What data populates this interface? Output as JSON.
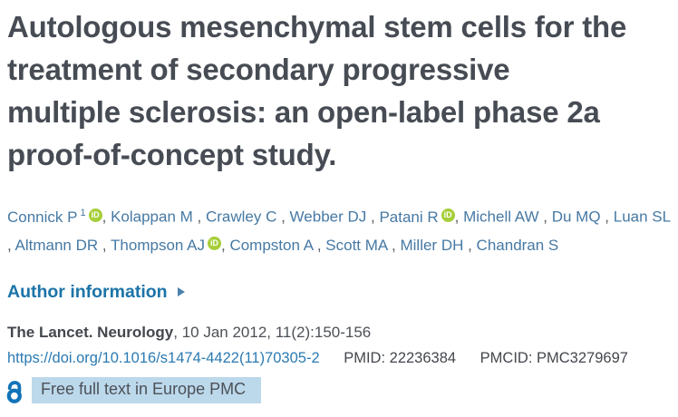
{
  "article": {
    "title_lines": [
      "Autologous mesenchymal stem cells for the",
      "treatment of secondary progressive",
      "multiple sclerosis: an open-label phase 2a",
      "proof-of-concept study."
    ],
    "authors": [
      {
        "name": "Connick P",
        "sup": "1",
        "orcid": true
      },
      {
        "name": "Kolappan M",
        "sup": "",
        "orcid": false
      },
      {
        "name": "Crawley C",
        "sup": "",
        "orcid": false
      },
      {
        "name": "Webber DJ",
        "sup": "",
        "orcid": false
      },
      {
        "name": "Patani R",
        "sup": "",
        "orcid": true
      },
      {
        "name": "Michell AW",
        "sup": "",
        "orcid": false
      },
      {
        "name": "Du MQ",
        "sup": "",
        "orcid": false
      },
      {
        "name": "Luan SL",
        "sup": "",
        "orcid": false
      },
      {
        "name": "Altmann DR",
        "sup": "",
        "orcid": false
      },
      {
        "name": "Thompson AJ",
        "sup": "",
        "orcid": true
      },
      {
        "name": "Compston A",
        "sup": "",
        "orcid": false
      },
      {
        "name": "Scott MA",
        "sup": "",
        "orcid": false
      },
      {
        "name": "Miller DH",
        "sup": "",
        "orcid": false
      },
      {
        "name": "Chandran S",
        "sup": "",
        "orcid": false
      }
    ],
    "orcid_icon_label": "iD"
  },
  "author_information": {
    "label": "Author information"
  },
  "citation": {
    "journal": "The Lancet. Neurology",
    "details": ", 10 Jan 2012, 11(2):150-156"
  },
  "identifiers": {
    "doi_link": "https://doi.org/10.1016/s1474-4422(11)70305-2",
    "pmid_label": "PMID:",
    "pmid_value": "22236384",
    "pmcid_label": "PMCID:",
    "pmcid_value": "PMC3279697"
  },
  "access": {
    "free_fulltext_label": "Free full text in Europe PMC"
  },
  "colors": {
    "title": "#474c54",
    "author_link": "#4679a4",
    "separator": "#555b61",
    "section_link": "#1c74a8",
    "expander": "#4a82ad",
    "text": "#4c5157",
    "text_dark": "#43474d",
    "doi_link": "#2b7ab3",
    "highlight_bg": "#bcd8eb",
    "lock_icon": "#1173b8",
    "orcid_green": "#a6ce39"
  }
}
